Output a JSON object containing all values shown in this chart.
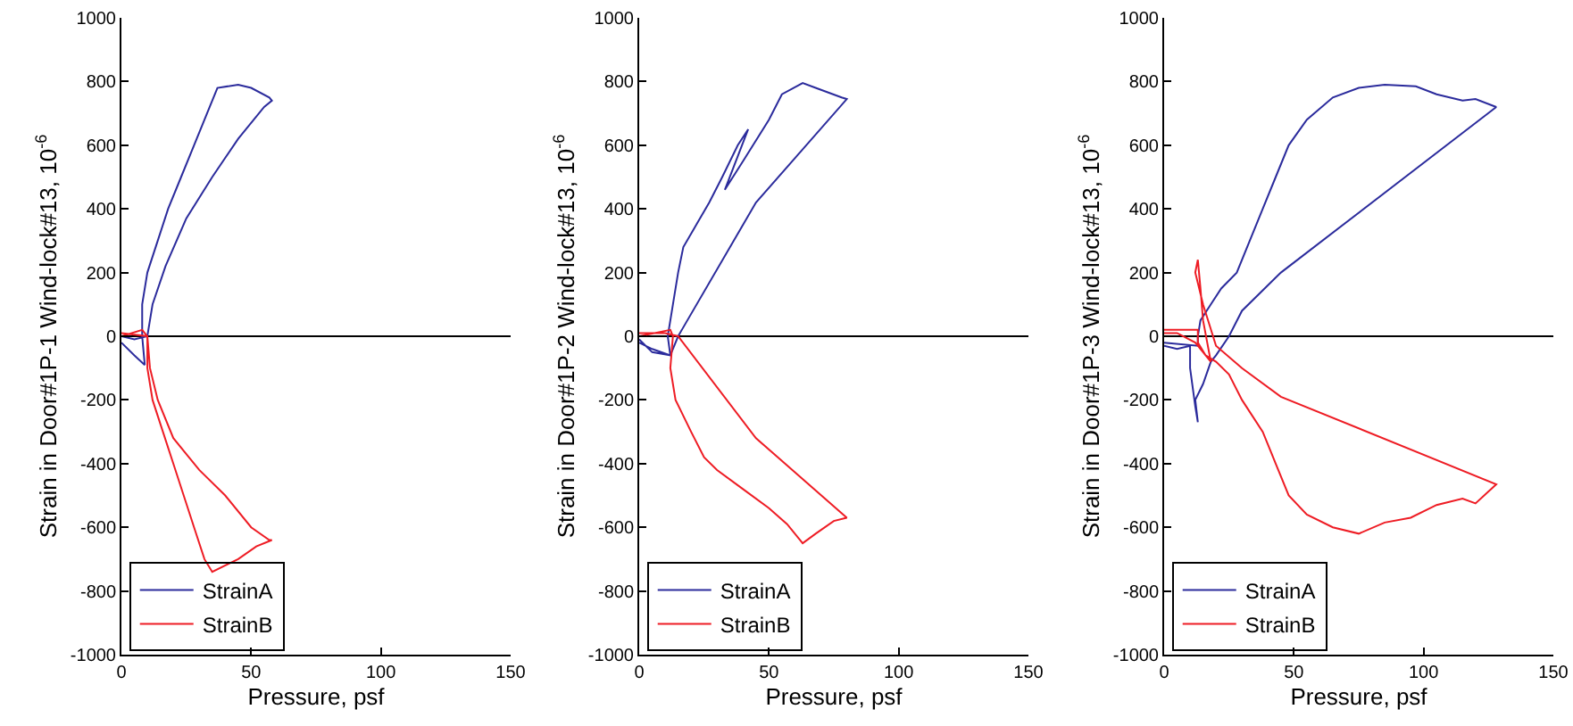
{
  "chart_data": [
    {
      "type": "line",
      "xlabel": "Pressure, psf",
      "ylabel": "Strain in Door#1P-1 Wind-lock#13, 10$^{-6}$",
      "xlim": [
        0,
        150
      ],
      "xticks": [
        0,
        50,
        100,
        150
      ],
      "ylim": [
        -1000,
        1000
      ],
      "yticks": [
        -1000,
        -800,
        -600,
        -400,
        -200,
        0,
        200,
        400,
        600,
        800,
        1000
      ],
      "legend": "bottom left",
      "ref_lines": [
        {
          "axis": "y",
          "value": 0,
          "color": "#000000"
        }
      ],
      "series": [
        {
          "name": "StrainA",
          "color": "#2b2b9c",
          "x": [
            0,
            5,
            9,
            8,
            8,
            10,
            14,
            18,
            23,
            28,
            33,
            37,
            45,
            50,
            57,
            58,
            55,
            45,
            35,
            25,
            17,
            12,
            10,
            5,
            0
          ],
          "values": [
            -20,
            -60,
            -90,
            0,
            100,
            200,
            300,
            400,
            500,
            600,
            700,
            780,
            790,
            780,
            750,
            740,
            720,
            620,
            500,
            370,
            220,
            100,
            0,
            -10,
            0
          ]
        },
        {
          "name": "StrainB",
          "color": "#ee1c24",
          "x": [
            0,
            8,
            10,
            10,
            12,
            16,
            20,
            24,
            28,
            32,
            35,
            45,
            52,
            58,
            57,
            50,
            40,
            30,
            20,
            14,
            11,
            10,
            0
          ],
          "values": [
            0,
            20,
            0,
            -100,
            -200,
            -300,
            -400,
            -500,
            -600,
            -700,
            -740,
            -700,
            -660,
            -640,
            -640,
            -600,
            -500,
            -420,
            -320,
            -200,
            -100,
            0,
            10
          ]
        }
      ]
    },
    {
      "type": "line",
      "xlabel": "Pressure, psf",
      "ylabel": "Strain in Door#1P-2 Wind-lock#13, 10$^{-6}$",
      "xlim": [
        0,
        150
      ],
      "xticks": [
        0,
        50,
        100,
        150
      ],
      "ylim": [
        -1000,
        1000
      ],
      "yticks": [
        -1000,
        -800,
        -600,
        -400,
        -200,
        0,
        200,
        400,
        600,
        800,
        1000
      ],
      "legend": "bottom left",
      "ref_lines": [
        {
          "axis": "y",
          "value": 0,
          "color": "#000000"
        }
      ],
      "series": [
        {
          "name": "StrainA",
          "color": "#2b2b9c",
          "x": [
            0,
            5,
            12,
            11,
            13,
            15,
            17,
            22,
            27,
            32,
            38,
            42,
            33,
            40,
            50,
            55,
            63,
            68,
            78,
            80,
            45,
            15,
            12,
            5,
            0
          ],
          "values": [
            -20,
            -40,
            -60,
            0,
            100,
            200,
            280,
            350,
            420,
            500,
            600,
            650,
            460,
            550,
            680,
            760,
            795,
            780,
            750,
            745,
            420,
            0,
            -60,
            -50,
            -10
          ]
        },
        {
          "name": "StrainB",
          "color": "#ee1c24",
          "x": [
            0,
            12,
            13,
            12,
            14,
            20,
            25,
            30,
            40,
            50,
            57,
            63,
            68,
            75,
            80,
            45,
            15,
            10,
            0
          ],
          "values": [
            0,
            20,
            0,
            -100,
            -200,
            -300,
            -380,
            -420,
            -480,
            -540,
            -590,
            -650,
            -620,
            -580,
            -570,
            -320,
            0,
            10,
            10
          ]
        }
      ]
    },
    {
      "type": "line",
      "xlabel": "Pressure, psf",
      "ylabel": "Strain in Door#1P-3 Wind-lock#13, 10$^{-6}$",
      "xlim": [
        0,
        150
      ],
      "xticks": [
        0,
        50,
        100,
        150
      ],
      "ylim": [
        -1000,
        1000
      ],
      "yticks": [
        -1000,
        -800,
        -600,
        -400,
        -200,
        0,
        200,
        400,
        600,
        800,
        1000
      ],
      "legend": "bottom left",
      "ref_lines": [
        {
          "axis": "y",
          "value": 0,
          "color": "#000000"
        }
      ],
      "series": [
        {
          "name": "StrainA",
          "color": "#2b2b9c",
          "x": [
            0,
            13,
            13,
            14,
            18,
            22,
            28,
            33,
            38,
            43,
            48,
            55,
            65,
            75,
            85,
            97,
            105,
            115,
            120,
            128,
            45,
            30,
            25,
            20,
            18,
            15,
            12,
            13,
            12,
            10,
            10,
            5,
            0
          ],
          "values": [
            -20,
            -30,
            0,
            50,
            100,
            150,
            200,
            300,
            400,
            500,
            600,
            680,
            750,
            780,
            790,
            785,
            760,
            740,
            745,
            720,
            200,
            80,
            0,
            -60,
            -80,
            -150,
            -200,
            -270,
            -220,
            -100,
            -30,
            -40,
            -30
          ]
        },
        {
          "name": "StrainB",
          "color": "#ee1c24",
          "x": [
            0,
            13,
            13,
            16,
            20,
            25,
            30,
            38,
            43,
            48,
            55,
            65,
            75,
            85,
            95,
            105,
            115,
            120,
            128,
            45,
            30,
            20,
            15,
            12,
            13,
            14,
            15,
            18,
            12,
            5,
            0
          ],
          "values": [
            20,
            20,
            -20,
            -60,
            -80,
            -120,
            -200,
            -300,
            -400,
            -500,
            -560,
            -600,
            -620,
            -585,
            -570,
            -530,
            -510,
            -525,
            -465,
            -190,
            -100,
            -30,
            100,
            200,
            240,
            150,
            50,
            -80,
            -20,
            10,
            10
          ]
        }
      ]
    }
  ]
}
